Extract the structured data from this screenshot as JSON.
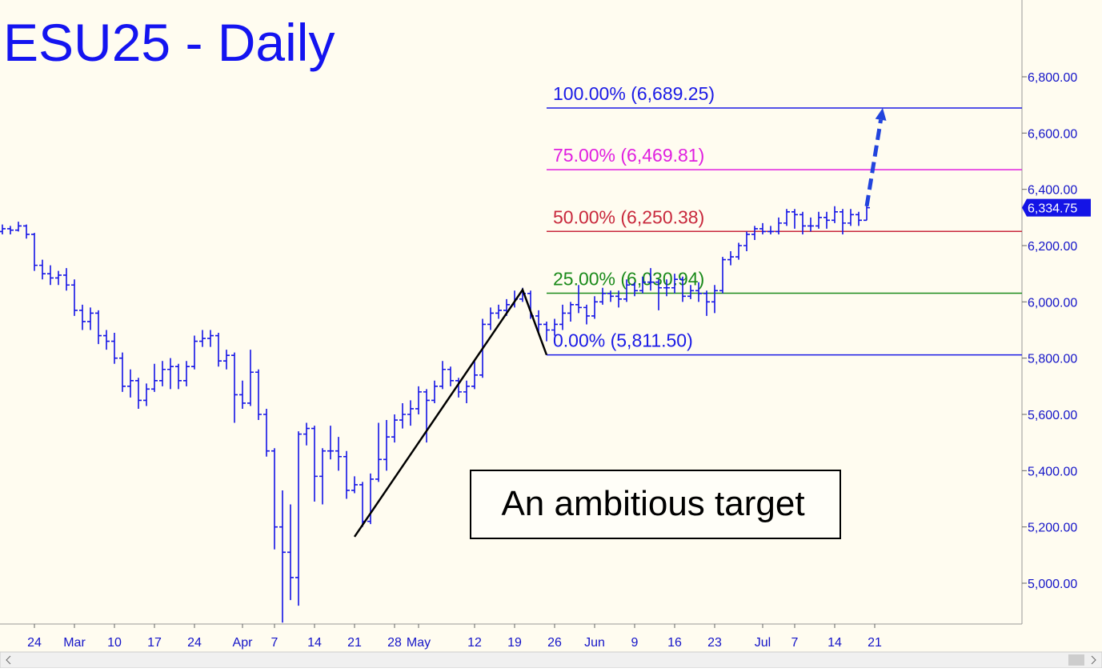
{
  "chart_data": {
    "type": "ohlc",
    "title": "ESU25 - Daily",
    "color": "#1414e6",
    "categories": [
      null,
      null,
      null,
      null,
      "24",
      null,
      null,
      null,
      null,
      "Mar",
      null,
      null,
      null,
      null,
      "10",
      null,
      null,
      null,
      null,
      "17",
      null,
      null,
      null,
      null,
      "24",
      null,
      null,
      null,
      null,
      null,
      "Apr",
      null,
      null,
      null,
      "7",
      null,
      null,
      null,
      null,
      "14",
      null,
      null,
      null,
      null,
      "21",
      null,
      null,
      null,
      null,
      "28",
      null,
      null,
      "May",
      null,
      null,
      null,
      null,
      null,
      null,
      "12",
      null,
      null,
      null,
      null,
      "19",
      null,
      null,
      null,
      null,
      "26",
      null,
      null,
      null,
      null,
      "Jun",
      null,
      null,
      null,
      null,
      "9",
      null,
      null,
      null,
      null,
      "16",
      null,
      null,
      null,
      null,
      "23",
      null,
      null,
      null,
      null,
      null,
      "Jul",
      null,
      null,
      null,
      "7",
      null,
      null,
      null,
      null,
      "14",
      null,
      null,
      null,
      null,
      "21"
    ],
    "ohlc": [
      [
        6250,
        6275,
        6240,
        6260
      ],
      [
        6260,
        6270,
        6240,
        6255
      ],
      [
        6255,
        6285,
        6250,
        6270
      ],
      [
        6270,
        6275,
        6225,
        6240
      ],
      [
        6240,
        6245,
        6110,
        6130
      ],
      [
        6130,
        6150,
        6080,
        6100
      ],
      [
        6100,
        6130,
        6060,
        6085
      ],
      [
        6085,
        6110,
        6060,
        6095
      ],
      [
        6095,
        6120,
        6040,
        6060
      ],
      [
        6060,
        6080,
        5950,
        5970
      ],
      [
        5970,
        5990,
        5900,
        5930
      ],
      [
        5930,
        5980,
        5900,
        5960
      ],
      [
        5960,
        5970,
        5850,
        5880
      ],
      [
        5880,
        5900,
        5830,
        5860
      ],
      [
        5860,
        5890,
        5780,
        5800
      ],
      [
        5800,
        5820,
        5680,
        5700
      ],
      [
        5700,
        5760,
        5660,
        5720
      ],
      [
        5720,
        5730,
        5620,
        5650
      ],
      [
        5650,
        5710,
        5630,
        5690
      ],
      [
        5690,
        5780,
        5680,
        5720
      ],
      [
        5720,
        5790,
        5700,
        5760
      ],
      [
        5760,
        5800,
        5690,
        5770
      ],
      [
        5770,
        5780,
        5690,
        5720
      ],
      [
        5720,
        5790,
        5700,
        5770
      ],
      [
        5770,
        5880,
        5760,
        5860
      ],
      [
        5860,
        5900,
        5840,
        5870
      ],
      [
        5870,
        5900,
        5840,
        5880
      ],
      [
        5880,
        5890,
        5770,
        5790
      ],
      [
        5790,
        5830,
        5760,
        5810
      ],
      [
        5810,
        5820,
        5570,
        5670
      ],
      [
        5670,
        5720,
        5620,
        5640
      ],
      [
        5640,
        5830,
        5630,
        5750
      ],
      [
        5750,
        5760,
        5580,
        5600
      ],
      [
        5600,
        5620,
        5450,
        5470
      ],
      [
        5470,
        5480,
        5120,
        5200
      ],
      [
        5200,
        5330,
        4860,
        5110
      ],
      [
        5110,
        5280,
        4940,
        5020
      ],
      [
        5020,
        5540,
        4920,
        5530
      ],
      [
        5530,
        5570,
        5490,
        5550
      ],
      [
        5550,
        5560,
        5290,
        5380
      ],
      [
        5380,
        5480,
        5280,
        5470
      ],
      [
        5470,
        5560,
        5440,
        5470
      ],
      [
        5470,
        5520,
        5400,
        5450
      ],
      [
        5450,
        5470,
        5300,
        5330
      ],
      [
        5330,
        5380,
        5320,
        5350
      ],
      [
        5350,
        5360,
        5200,
        5220
      ],
      [
        5220,
        5390,
        5210,
        5370
      ],
      [
        5370,
        5570,
        5360,
        5440
      ],
      [
        5440,
        5580,
        5400,
        5520
      ],
      [
        5520,
        5600,
        5500,
        5580
      ],
      [
        5580,
        5640,
        5550,
        5600
      ],
      [
        5600,
        5650,
        5560,
        5620
      ],
      [
        5620,
        5700,
        5600,
        5680
      ],
      [
        5680,
        5690,
        5500,
        5650
      ],
      [
        5650,
        5720,
        5640,
        5700
      ],
      [
        5700,
        5790,
        5690,
        5760
      ],
      [
        5760,
        5770,
        5700,
        5720
      ],
      [
        5720,
        5730,
        5660,
        5680
      ],
      [
        5680,
        5720,
        5640,
        5700
      ],
      [
        5700,
        5790,
        5690,
        5740
      ],
      [
        5740,
        5940,
        5730,
        5920
      ],
      [
        5920,
        5980,
        5900,
        5960
      ],
      [
        5960,
        5990,
        5940,
        5970
      ],
      [
        5970,
        6010,
        5950,
        5990
      ],
      [
        5990,
        6040,
        5980,
        6010
      ],
      [
        6010,
        6050,
        6000,
        6030
      ],
      [
        6030,
        6040,
        5940,
        5950
      ],
      [
        5950,
        5970,
        5890,
        5920
      ],
      [
        5920,
        5930,
        5860,
        5900
      ],
      [
        5900,
        5940,
        5880,
        5920
      ],
      [
        5920,
        5990,
        5900,
        5960
      ],
      [
        5960,
        6000,
        5930,
        5990
      ],
      [
        5990,
        6060,
        5960,
        5980
      ],
      [
        5980,
        5990,
        5920,
        5950
      ],
      [
        5950,
        6020,
        5940,
        6000
      ],
      [
        6000,
        6050,
        5990,
        6030
      ],
      [
        6030,
        6040,
        6000,
        6020
      ],
      [
        6020,
        6040,
        5980,
        6010
      ],
      [
        6010,
        6080,
        6000,
        6060
      ],
      [
        6060,
        6070,
        6020,
        6040
      ],
      [
        6040,
        6090,
        6030,
        6070
      ],
      [
        6070,
        6120,
        6040,
        6070
      ],
      [
        6070,
        6080,
        5970,
        6050
      ],
      [
        6050,
        6080,
        6020,
        6050
      ],
      [
        6050,
        6100,
        6030,
        6080
      ],
      [
        6080,
        6090,
        6000,
        6020
      ],
      [
        6020,
        6060,
        6010,
        6040
      ],
      [
        6040,
        6070,
        6000,
        6030
      ],
      [
        6030,
        6040,
        5950,
        6000
      ],
      [
        6000,
        6060,
        5960,
        6040
      ],
      [
        6040,
        6160,
        6030,
        6150
      ],
      [
        6150,
        6180,
        6130,
        6160
      ],
      [
        6160,
        6210,
        6150,
        6200
      ],
      [
        6200,
        6250,
        6180,
        6240
      ],
      [
        6240,
        6270,
        6220,
        6260
      ],
      [
        6260,
        6280,
        6240,
        6250
      ],
      [
        6250,
        6270,
        6240,
        6250
      ],
      [
        6250,
        6300,
        6240,
        6280
      ],
      [
        6280,
        6330,
        6270,
        6320
      ],
      [
        6320,
        6330,
        6260,
        6310
      ],
      [
        6310,
        6320,
        6240,
        6270
      ],
      [
        6270,
        6300,
        6250,
        6270
      ],
      [
        6270,
        6320,
        6260,
        6300
      ],
      [
        6300,
        6320,
        6260,
        6290
      ],
      [
        6290,
        6340,
        6280,
        6320
      ],
      [
        6320,
        6330,
        6240,
        6280
      ],
      [
        6280,
        6330,
        6270,
        6310
      ],
      [
        6310,
        6320,
        6270,
        6290
      ],
      [
        6290,
        6350,
        6290,
        6334.75
      ],
      null
    ],
    "ylim": [
      4855,
      7073
    ],
    "yticks": [
      {
        "value": 5000,
        "label": "5,000.00"
      },
      {
        "value": 5200,
        "label": "5,200.00"
      },
      {
        "value": 5400,
        "label": "5,400.00"
      },
      {
        "value": 5600,
        "label": "5,600.00"
      },
      {
        "value": 5800,
        "label": "5,800.00"
      },
      {
        "value": 6000,
        "label": "6,000.00"
      },
      {
        "value": 6200,
        "label": "6,200.00"
      },
      {
        "value": 6400,
        "label": "6,400.00"
      },
      {
        "value": 6600,
        "label": "6,600.00"
      },
      {
        "value": 6800,
        "label": "6,800.00"
      }
    ],
    "fib_levels": [
      {
        "value": 6689.25,
        "label": "100.00% (6,689.25)",
        "color": "#1a1ae6"
      },
      {
        "value": 6469.81,
        "label": "75.00% (6,469.81)",
        "color": "#e020e0"
      },
      {
        "value": 6250.38,
        "label": "50.00% (6,250.38)",
        "color": "#c8283c"
      },
      {
        "value": 6030.94,
        "label": "25.00% (6,030.94)",
        "color": "#1a8a1a"
      },
      {
        "value": 5811.5,
        "label": "0.00% (5,811.50)",
        "color": "#1a1ae6"
      }
    ],
    "abc_pattern": [
      5165,
      6043,
      5811.5
    ],
    "projection_arrow": [
      6340,
      6689.25
    ],
    "last_price": {
      "value": 6334.75,
      "label": "6,334.75"
    },
    "annotation": "An ambitious target"
  }
}
